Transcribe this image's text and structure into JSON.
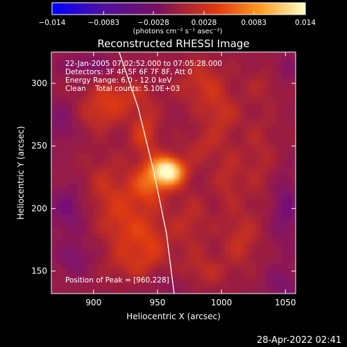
{
  "chart_data": {
    "type": "heatmap",
    "title": "Reconstructed RHESSI Image",
    "xlabel": "Heliocentric X (arcsec)",
    "ylabel": "Heliocentric Y (arcsec)",
    "xlim": [
      867,
      1058
    ],
    "ylim": [
      132,
      325
    ],
    "xticks": [
      900,
      950,
      1000,
      1050
    ],
    "yticks": [
      150,
      200,
      250,
      300
    ],
    "colorbar": {
      "range": [
        -0.014,
        0.014
      ],
      "ticks": [
        -0.014,
        -0.0083,
        -0.0028,
        0.0028,
        0.0083,
        0.014
      ],
      "tick_labels": [
        "−0.014",
        "−0.0083",
        "−0.0028",
        "0.0028",
        "0.0083",
        "0.014"
      ],
      "unit_label": "(photons cm⁻² s⁻¹ asec⁻²)",
      "colors": [
        "#0000ff",
        "#6a0a8a",
        "#a0203a",
        "#e03a10",
        "#ff9a20",
        "#ffffc8"
      ]
    },
    "annotations": {
      "time": "22-Jan-2005 07:02:52.000 to 07:05:28.000",
      "detectors": "Detectors: 3F 4F 5F 6F 7F 8F, Att 0",
      "energy": "Energy Range: 6.0 - 12.0 keV",
      "clean": "Clean    Total counts: 5.10E+03",
      "peak": "Position of Peak = [960,228]"
    },
    "peak": {
      "x": 960,
      "y": 228
    },
    "limb_points": [
      [
        920,
        325
      ],
      [
        935,
        280
      ],
      [
        947,
        230
      ],
      [
        957,
        180
      ],
      [
        963,
        132
      ]
    ],
    "blobs": [
      {
        "x": 958,
        "y": 230,
        "sx": 9,
        "sy": 8,
        "v": 0.016
      },
      {
        "x": 942,
        "y": 218,
        "sx": 10,
        "sy": 12,
        "v": 0.006
      },
      {
        "x": 940,
        "y": 260,
        "sx": 8,
        "sy": 14,
        "v": 0.005
      },
      {
        "x": 920,
        "y": 290,
        "sx": 18,
        "sy": 10,
        "v": 0.004
      },
      {
        "x": 905,
        "y": 275,
        "sx": 12,
        "sy": 10,
        "v": 0.0035
      },
      {
        "x": 910,
        "y": 215,
        "sx": 14,
        "sy": 20,
        "v": 0.0035
      },
      {
        "x": 925,
        "y": 185,
        "sx": 12,
        "sy": 16,
        "v": 0.004
      },
      {
        "x": 945,
        "y": 175,
        "sx": 10,
        "sy": 14,
        "v": 0.004
      },
      {
        "x": 930,
        "y": 155,
        "sx": 16,
        "sy": 10,
        "v": 0.003
      },
      {
        "x": 975,
        "y": 190,
        "sx": 12,
        "sy": 18,
        "v": 0.003
      },
      {
        "x": 985,
        "y": 150,
        "sx": 14,
        "sy": 10,
        "v": 0.003
      },
      {
        "x": 985,
        "y": 300,
        "sx": 14,
        "sy": 14,
        "v": 0.004
      },
      {
        "x": 1000,
        "y": 275,
        "sx": 10,
        "sy": 12,
        "v": 0.0035
      },
      {
        "x": 985,
        "y": 250,
        "sx": 10,
        "sy": 10,
        "v": 0.003
      },
      {
        "x": 1005,
        "y": 225,
        "sx": 8,
        "sy": 18,
        "v": 0.003
      },
      {
        "x": 1015,
        "y": 175,
        "sx": 10,
        "sy": 16,
        "v": 0.0035
      },
      {
        "x": 1030,
        "y": 240,
        "sx": 10,
        "sy": 30,
        "v": 0.0025
      },
      {
        "x": 1035,
        "y": 300,
        "sx": 12,
        "sy": 10,
        "v": 0.002
      },
      {
        "x": 875,
        "y": 270,
        "sx": 8,
        "sy": 12,
        "v": -0.004
      },
      {
        "x": 880,
        "y": 200,
        "sx": 10,
        "sy": 14,
        "v": -0.005
      },
      {
        "x": 885,
        "y": 160,
        "sx": 10,
        "sy": 10,
        "v": -0.004
      },
      {
        "x": 895,
        "y": 315,
        "sx": 14,
        "sy": 6,
        "v": -0.004
      },
      {
        "x": 1050,
        "y": 200,
        "sx": 8,
        "sy": 20,
        "v": -0.005
      },
      {
        "x": 1048,
        "y": 140,
        "sx": 10,
        "sy": 10,
        "v": -0.004
      },
      {
        "x": 1050,
        "y": 310,
        "sx": 8,
        "sy": 10,
        "v": -0.003
      },
      {
        "x": 960,
        "y": 140,
        "sx": 12,
        "sy": 8,
        "v": -0.002
      }
    ]
  },
  "footer": {
    "timestamp": "28-Apr-2022 02:41"
  }
}
